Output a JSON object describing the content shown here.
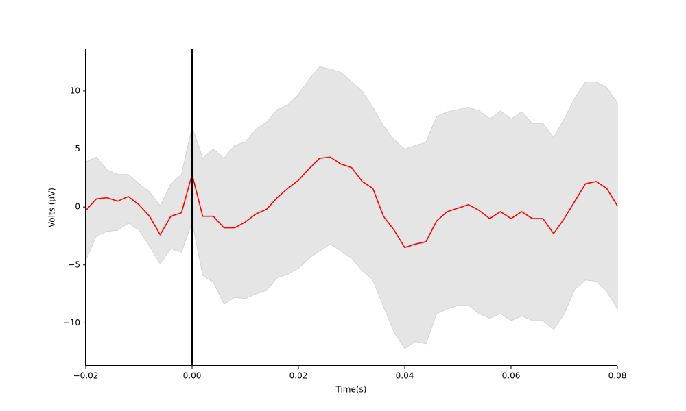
{
  "chart_data": {
    "type": "line",
    "xlabel": "Time(s)",
    "ylabel": "Volts (μV)",
    "xlim": [
      -0.02,
      0.08
    ],
    "ylim": [
      -13.7,
      13.6
    ],
    "xticks": [
      {
        "value": -0.02,
        "label": "−0.02"
      },
      {
        "value": 0,
        "label": "0.00"
      },
      {
        "value": 0.02,
        "label": "0.02"
      },
      {
        "value": 0.04,
        "label": "0.04"
      },
      {
        "value": 0.06,
        "label": "0.06"
      },
      {
        "value": 0.08,
        "label": "0.08"
      }
    ],
    "yticks": [
      {
        "value": -10,
        "label": "−10"
      },
      {
        "value": -5,
        "label": "−5"
      },
      0,
      5,
      10
    ],
    "vline": 0,
    "x": [
      -0.02,
      -0.018,
      -0.016,
      -0.014,
      -0.012,
      -0.01,
      -0.008,
      -0.006,
      -0.004,
      -0.002,
      0,
      0.002,
      0.004,
      0.006,
      0.008,
      0.01,
      0.012,
      0.014,
      0.016,
      0.018,
      0.02,
      0.022,
      0.024,
      0.026,
      0.028,
      0.03,
      0.032,
      0.034,
      0.036,
      0.038,
      0.04,
      0.042,
      0.044,
      0.046,
      0.048,
      0.05,
      0.052,
      0.054,
      0.056,
      0.058,
      0.06,
      0.062,
      0.064,
      0.066,
      0.068,
      0.07,
      0.072,
      0.074,
      0.076,
      0.078,
      0.08
    ],
    "series": [
      {
        "color": "#ff0000",
        "band_color": "#e5e5e5",
        "values": [
          -0.3,
          0.7,
          0.8,
          0.5,
          0.9,
          0.2,
          -0.8,
          -2.4,
          -0.8,
          -0.5,
          2.8,
          -0.8,
          -0.8,
          -1.8,
          -1.8,
          -1.3,
          -0.6,
          -0.2,
          0.8,
          1.6,
          2.3,
          3.3,
          4.2,
          4.3,
          3.7,
          3.4,
          2.2,
          1.6,
          -0.8,
          -2.0,
          -3.5,
          -3.2,
          -3.0,
          -1.2,
          -0.4,
          -0.1,
          0.2,
          -0.3,
          -1.0,
          -0.4,
          -1.0,
          -0.4,
          -1.0,
          -1.0,
          -2.3,
          -1.0,
          0.5,
          2.0,
          2.2,
          1.6,
          0.1
        ],
        "upper": [
          3.9,
          4.3,
          3.2,
          2.8,
          2.8,
          2.0,
          1.3,
          0.1,
          2.0,
          2.8,
          6.9,
          4.2,
          5.0,
          4.2,
          5.3,
          5.6,
          6.7,
          7.3,
          8.4,
          8.8,
          9.7,
          11.0,
          12.1,
          11.9,
          11.6,
          10.8,
          10.0,
          8.6,
          7.0,
          5.8,
          5.0,
          5.3,
          5.6,
          7.8,
          8.2,
          8.4,
          8.6,
          8.3,
          7.6,
          8.3,
          7.6,
          8.2,
          7.2,
          7.2,
          6.0,
          7.6,
          9.4,
          10.8,
          10.8,
          10.3,
          9.0
        ],
        "lower": [
          -4.6,
          -2.5,
          -2.1,
          -2.0,
          -1.4,
          -2.0,
          -3.4,
          -4.9,
          -3.6,
          -3.9,
          -1.3,
          -5.9,
          -6.5,
          -8.4,
          -7.8,
          -7.9,
          -7.5,
          -7.2,
          -6.1,
          -5.8,
          -5.3,
          -4.4,
          -3.8,
          -3.2,
          -3.8,
          -4.4,
          -5.5,
          -6.3,
          -8.6,
          -10.8,
          -12.2,
          -11.6,
          -11.8,
          -9.2,
          -8.8,
          -8.5,
          -8.5,
          -9.2,
          -9.6,
          -9.2,
          -9.8,
          -9.4,
          -9.8,
          -9.8,
          -10.6,
          -9.2,
          -7.1,
          -6.3,
          -6.4,
          -7.3,
          -8.8
        ]
      }
    ]
  }
}
